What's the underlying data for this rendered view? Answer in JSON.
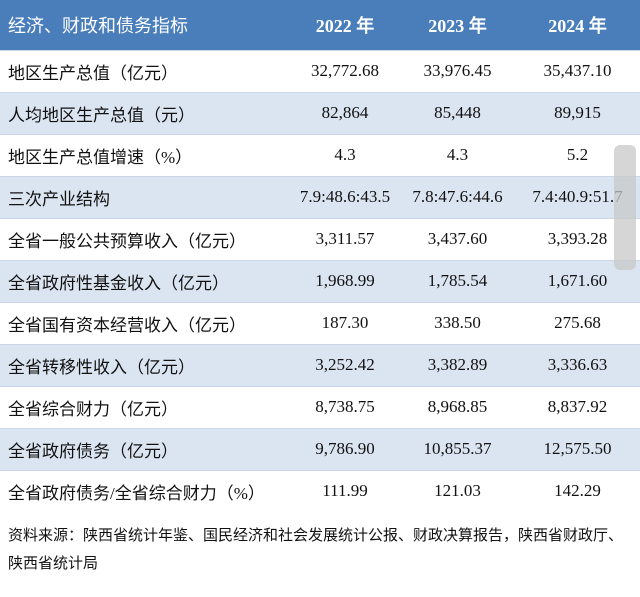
{
  "table": {
    "header": [
      "经济、财政和债务指标",
      "2022 年",
      "2023 年",
      "2024 年"
    ],
    "rows": [
      [
        "地区生产总值（亿元）",
        "32,772.68",
        "33,976.45",
        "35,437.10"
      ],
      [
        "人均地区生产总值（元）",
        "82,864",
        "85,448",
        "89,915"
      ],
      [
        "地区生产总值增速（%）",
        "4.3",
        "4.3",
        "5.2"
      ],
      [
        "三次产业结构",
        "7.9:48.6:43.5",
        "7.8:47.6:44.6",
        "7.4:40.9:51.7"
      ],
      [
        "全省一般公共预算收入（亿元）",
        "3,311.57",
        "3,437.60",
        "3,393.28"
      ],
      [
        "全省政府性基金收入（亿元）",
        "1,968.99",
        "1,785.54",
        "1,671.60"
      ],
      [
        "全省国有资本经营收入（亿元）",
        "187.30",
        "338.50",
        "275.68"
      ],
      [
        "全省转移性收入（亿元）",
        "3,252.42",
        "3,382.89",
        "3,336.63"
      ],
      [
        "全省综合财力（亿元）",
        "8,738.75",
        "8,968.85",
        "8,837.92"
      ],
      [
        "全省政府债务（亿元）",
        "9,786.90",
        "10,855.37",
        "12,575.50"
      ],
      [
        "全省政府债务/全省综合财力（%）",
        "111.99",
        "121.03",
        "142.29"
      ]
    ],
    "source": "资料来源：陕西省统计年鉴、国民经济和社会发展统计公报、财政决算报告，陕西省财政厅、陕西省统计局"
  }
}
